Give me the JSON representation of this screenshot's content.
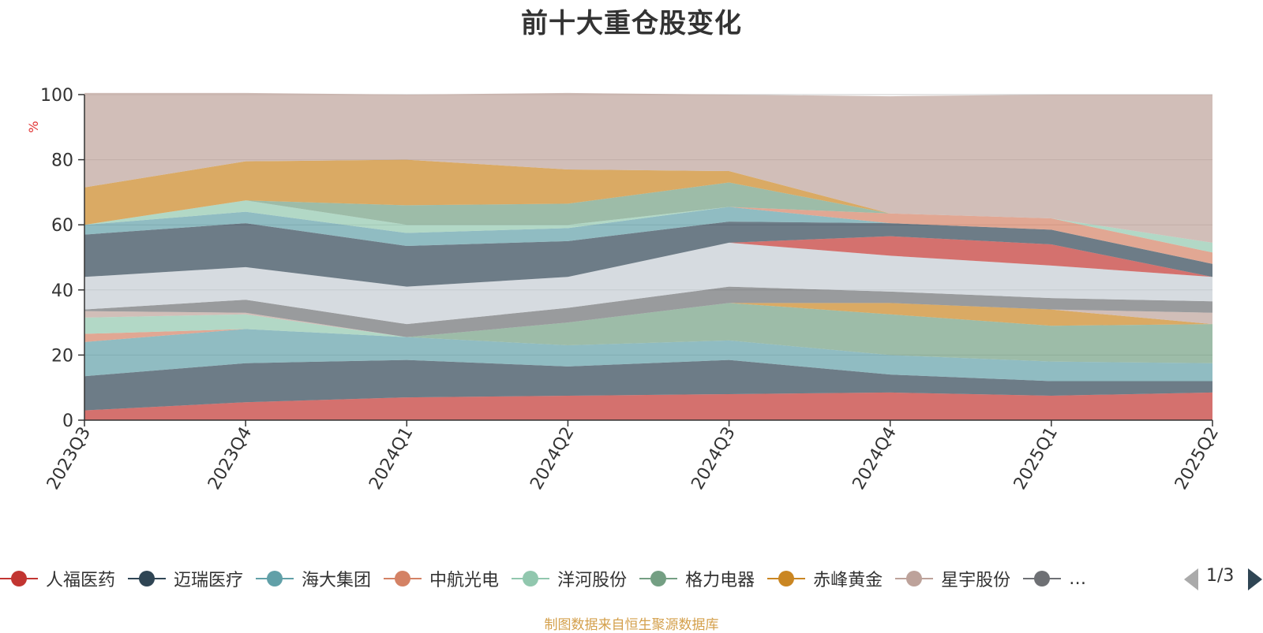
{
  "title": "前十大重仓股变化",
  "source_note": "制图数据来自恒生聚源数据库",
  "legend": {
    "items": [
      {
        "name": "人福医药",
        "color": "#c23531"
      },
      {
        "name": "迈瑞医疗",
        "color": "#2f4554"
      },
      {
        "name": "海大集团",
        "color": "#61a0a8"
      },
      {
        "name": "中航光电",
        "color": "#d48265"
      },
      {
        "name": "洋河股份",
        "color": "#91c7ae"
      },
      {
        "name": "格力电器",
        "color": "#749f83"
      },
      {
        "name": "赤峰黄金",
        "color": "#ca8622"
      },
      {
        "name": "星宇股份",
        "color": "#bda29a"
      },
      {
        "name": "…",
        "color": "#6e7074"
      }
    ],
    "page_indicator": "1/3"
  },
  "chart_data": {
    "type": "area",
    "stacked": true,
    "categories": [
      "2023Q3",
      "2023Q4",
      "2024Q1",
      "2024Q2",
      "2024Q3",
      "2024Q4",
      "2025Q1",
      "2025Q2"
    ],
    "ylabel": "%",
    "ylim": [
      0,
      100
    ],
    "yticks": [
      0,
      20,
      40,
      60,
      80,
      100
    ],
    "grid": true,
    "series": [
      {
        "name": "人福医药",
        "color": "#c23531",
        "values": [
          3,
          5.5,
          7,
          7.5,
          8,
          8.5,
          7.5,
          8.5
        ]
      },
      {
        "name": "迈瑞医疗",
        "color": "#2f4554",
        "values": [
          10.5,
          12,
          11.5,
          9,
          10.5,
          5.5,
          4.5,
          3.5
        ]
      },
      {
        "name": "海大集团",
        "color": "#61a0a8",
        "values": [
          10.5,
          10.5,
          7,
          6.5,
          6,
          6,
          6,
          5.5
        ]
      },
      {
        "name": "中航光电",
        "color": "#d48265",
        "values": [
          2.5,
          0,
          0,
          0,
          0,
          0,
          0,
          0
        ]
      },
      {
        "name": "洋河股份",
        "color": "#91c7ae",
        "values": [
          5,
          4.5,
          0,
          0,
          0,
          0,
          0,
          0
        ]
      },
      {
        "name": "格力电器",
        "color": "#749f83",
        "values": [
          0,
          0,
          0,
          7,
          11.5,
          12.5,
          11,
          12
        ]
      },
      {
        "name": "赤峰黄金",
        "color": "#ca8622",
        "values": [
          0,
          0,
          0,
          0,
          0,
          3.5,
          5,
          0
        ]
      },
      {
        "name": "星宇股份",
        "color": "#bda29a",
        "values": [
          2,
          0.5,
          0,
          0,
          0,
          0,
          0,
          3.5
        ]
      },
      {
        "name": "",
        "color": "#6e7074",
        "values": [
          0.5,
          4,
          4,
          4.5,
          5,
          3.5,
          3.5,
          3.5
        ]
      },
      {
        "name": "",
        "color": "#c4ccd3",
        "values": [
          10,
          10,
          11.5,
          9.5,
          13.5,
          11,
          10,
          7.5
        ]
      },
      {
        "name": "",
        "color": "#c23531",
        "values": [
          0,
          0,
          0,
          0,
          0,
          6,
          6.5,
          0
        ]
      },
      {
        "name": "",
        "color": "#2f4554",
        "values": [
          13,
          13.5,
          12.5,
          11,
          6.5,
          4,
          4.5,
          4
        ]
      },
      {
        "name": "",
        "color": "#61a0a8",
        "values": [
          3,
          3.5,
          4,
          4,
          4.5,
          0,
          0,
          0
        ]
      },
      {
        "name": "",
        "color": "#d48265",
        "values": [
          0,
          0,
          0,
          0,
          0,
          3,
          3.5,
          3.5
        ]
      },
      {
        "name": "",
        "color": "#91c7ae",
        "values": [
          0,
          3.5,
          2.5,
          1,
          0,
          0,
          0,
          3
        ]
      },
      {
        "name": "",
        "color": "#749f83",
        "values": [
          0,
          0,
          6,
          6.5,
          7.5,
          0,
          0,
          0
        ]
      },
      {
        "name": "",
        "color": "#ca8622",
        "values": [
          11.5,
          12,
          14,
          10.5,
          3.5,
          0,
          0,
          0
        ]
      },
      {
        "name": "",
        "color": "#bda29a",
        "values": [
          29,
          21,
          20,
          23.5,
          23.5,
          36,
          38,
          45.5
        ]
      }
    ]
  }
}
